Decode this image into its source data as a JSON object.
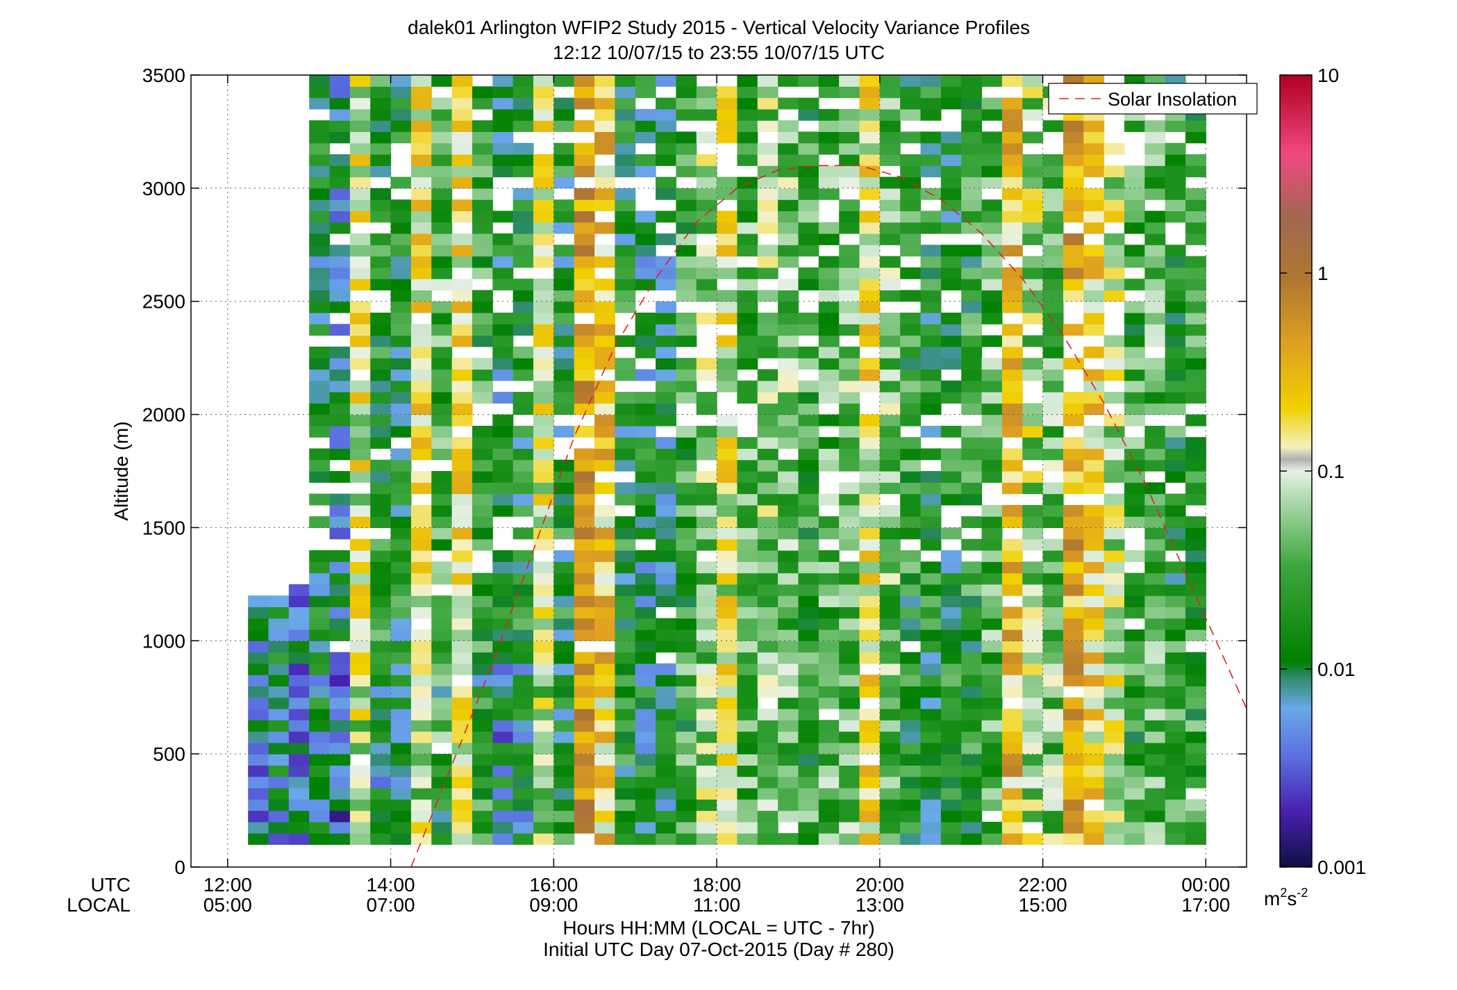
{
  "chart_data": {
    "type": "heatmap",
    "title": "dalek01 Arlington WFIP2 Study 2015 - Vertical Velocity Variance Profiles",
    "subtitle": "12:12 10/07/15 to 23:55 10/07/15  UTC",
    "ylabel": "Altitude (m)",
    "xlabel": "Hours HH:MM  (LOCAL = UTC - 7hr)",
    "xlabel2": "Initial UTC Day 07-Oct-2015 (Day # 280)",
    "utc_label": "UTC",
    "local_label": "LOCAL",
    "xlim": [
      11.55,
      24.5
    ],
    "ylim": [
      0,
      3500
    ],
    "x_ticks": [
      {
        "value": 12,
        "utc": "12:00",
        "local": "05:00"
      },
      {
        "value": 14,
        "utc": "14:00",
        "local": "07:00"
      },
      {
        "value": 16,
        "utc": "16:00",
        "local": "09:00"
      },
      {
        "value": 18,
        "utc": "18:00",
        "local": "11:00"
      },
      {
        "value": 20,
        "utc": "20:00",
        "local": "13:00"
      },
      {
        "value": 22,
        "utc": "22:00",
        "local": "15:00"
      },
      {
        "value": 24,
        "utc": "00:00",
        "local": "17:00"
      }
    ],
    "y_ticks": [
      {
        "value": 0,
        "label": "0"
      },
      {
        "value": 500,
        "label": "500"
      },
      {
        "value": 1000,
        "label": "1000"
      },
      {
        "value": 1500,
        "label": "1500"
      },
      {
        "value": 2000,
        "label": "2000"
      },
      {
        "value": 2500,
        "label": "2500"
      },
      {
        "value": 3000,
        "label": "3000"
      },
      {
        "value": 3500,
        "label": "3500"
      }
    ],
    "grid": true,
    "legend": {
      "position": "top-right",
      "entries": [
        {
          "name": "Solar Insolation",
          "color": "#e02020",
          "style": "dashed"
        }
      ]
    },
    "colorbar": {
      "scale": "log",
      "range": [
        0.001,
        10
      ],
      "tick_labels": [
        {
          "value": 10,
          "label": "10"
        },
        {
          "value": 1,
          "label": "1"
        },
        {
          "value": 0.1,
          "label": "0.1"
        },
        {
          "value": 0.01,
          "label": "0.01"
        },
        {
          "value": 0.001,
          "label": "0.001"
        }
      ],
      "units_label": "m",
      "units_sup1": "2",
      "units_mid": "s",
      "units_sup2": "-2"
    },
    "time_bin_hours": 0.25,
    "altitude_bin_m": 50,
    "columns": [
      {
        "start": 12.25,
        "top": 1200,
        "mean": -2.1
      },
      {
        "start": 12.5,
        "top": 1200,
        "mean": -2.0
      },
      {
        "start": 12.75,
        "top": 1250,
        "mean": -2.2
      },
      {
        "start": 13.0,
        "top": 3500,
        "mean": -1.9
      },
      {
        "start": 13.25,
        "top": 3500,
        "mean": -2.1
      },
      {
        "start": 13.5,
        "top": 3500,
        "mean": -1.0
      },
      {
        "start": 13.75,
        "top": 3500,
        "mean": -1.7
      },
      {
        "start": 14.0,
        "top": 3500,
        "mean": -1.8
      },
      {
        "start": 14.25,
        "top": 3500,
        "mean": -0.9
      },
      {
        "start": 14.5,
        "top": 3500,
        "mean": -1.5
      },
      {
        "start": 14.75,
        "top": 3500,
        "mean": -0.9
      },
      {
        "start": 15.0,
        "top": 3500,
        "mean": -1.6
      },
      {
        "start": 15.25,
        "top": 3500,
        "mean": -1.9
      },
      {
        "start": 15.5,
        "top": 3500,
        "mean": -1.8
      },
      {
        "start": 15.75,
        "top": 3500,
        "mean": -1.0
      },
      {
        "start": 16.0,
        "top": 3500,
        "mean": -1.8
      },
      {
        "start": 16.25,
        "top": 3500,
        "mean": -0.4
      },
      {
        "start": 16.5,
        "top": 3500,
        "mean": -0.7
      },
      {
        "start": 16.75,
        "top": 3500,
        "mean": -1.8
      },
      {
        "start": 17.0,
        "top": 3500,
        "mean": -1.9
      },
      {
        "start": 17.25,
        "top": 3500,
        "mean": -1.9
      },
      {
        "start": 17.5,
        "top": 3500,
        "mean": -1.6
      },
      {
        "start": 17.75,
        "top": 3500,
        "mean": -1.3
      },
      {
        "start": 18.0,
        "top": 3500,
        "mean": -1.0
      },
      {
        "start": 18.25,
        "top": 3500,
        "mean": -1.5
      },
      {
        "start": 18.5,
        "top": 3500,
        "mean": -1.3
      },
      {
        "start": 18.75,
        "top": 3500,
        "mean": -1.4
      },
      {
        "start": 19.0,
        "top": 3500,
        "mean": -1.6
      },
      {
        "start": 19.25,
        "top": 3500,
        "mean": -1.5
      },
      {
        "start": 19.5,
        "top": 3500,
        "mean": -1.4
      },
      {
        "start": 19.75,
        "top": 3500,
        "mean": -0.9
      },
      {
        "start": 20.0,
        "top": 3500,
        "mean": -1.4
      },
      {
        "start": 20.25,
        "top": 3500,
        "mean": -1.7
      },
      {
        "start": 20.5,
        "top": 3500,
        "mean": -1.8
      },
      {
        "start": 20.75,
        "top": 3500,
        "mean": -1.8
      },
      {
        "start": 21.0,
        "top": 3500,
        "mean": -1.7
      },
      {
        "start": 21.25,
        "top": 3500,
        "mean": -1.5
      },
      {
        "start": 21.5,
        "top": 3500,
        "mean": -0.6
      },
      {
        "start": 21.75,
        "top": 3500,
        "mean": -1.2
      },
      {
        "start": 22.0,
        "top": 3500,
        "mean": -1.4
      },
      {
        "start": 22.25,
        "top": 3500,
        "mean": -0.5
      },
      {
        "start": 22.5,
        "top": 3500,
        "mean": -0.8
      },
      {
        "start": 22.75,
        "top": 3500,
        "mean": -1.1
      },
      {
        "start": 23.0,
        "top": 3500,
        "mean": -1.6
      },
      {
        "start": 23.25,
        "top": 3500,
        "mean": -1.5
      },
      {
        "start": 23.5,
        "top": 3500,
        "mean": -1.7
      },
      {
        "start": 23.75,
        "top": 3400,
        "mean": -1.6
      }
    ],
    "solar_insolation": {
      "x": [
        14.25,
        14.75,
        15.25,
        15.75,
        16.25,
        16.75,
        17.25,
        17.75,
        18.25,
        18.75,
        19.25,
        19.75,
        20.25,
        20.75,
        21.25,
        21.75,
        22.25,
        22.75,
        23.25,
        23.75,
        24.25,
        24.5
      ],
      "y": [
        0,
        450,
        900,
        1400,
        1900,
        2300,
        2600,
        2850,
        3000,
        3080,
        3100,
        3100,
        3050,
        2950,
        2800,
        2600,
        2350,
        2050,
        1700,
        1300,
        900,
        700
      ]
    }
  }
}
